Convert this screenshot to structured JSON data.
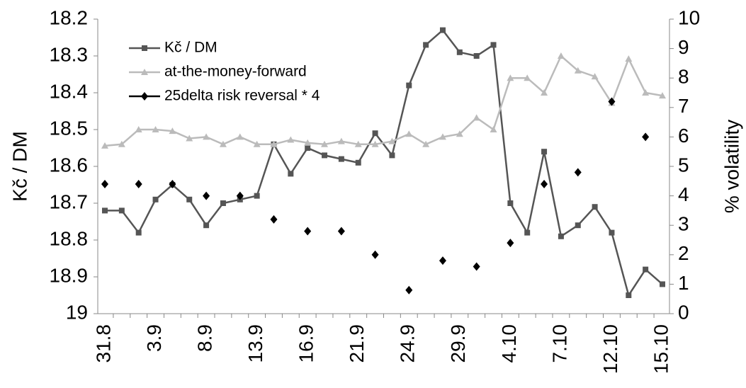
{
  "chart_data": {
    "type": "line",
    "categories": [
      "31.8",
      null,
      null,
      "3.9",
      null,
      null,
      "8.9",
      null,
      null,
      "13.9",
      null,
      null,
      "16.9",
      null,
      null,
      "21.9",
      null,
      null,
      "24.9",
      null,
      null,
      "29.9",
      null,
      null,
      "4.10",
      null,
      null,
      "7.10",
      null,
      null,
      "12.10",
      null,
      null,
      "15.10"
    ],
    "ylabel": "Kč / DM",
    "y2label": "% volatility",
    "ylim": [
      19,
      18.2
    ],
    "yticks": [
      18.2,
      18.3,
      18.4,
      18.5,
      18.6,
      18.7,
      18.8,
      18.9,
      19
    ],
    "y2lim": [
      0,
      10
    ],
    "y2ticks": [
      0,
      1,
      2,
      3,
      4,
      5,
      6,
      7,
      8,
      9,
      10
    ],
    "legend": "upper left",
    "series": [
      {
        "name": "Kč / DM",
        "color": "#555555",
        "marker": "square",
        "values": [
          18.72,
          18.72,
          18.78,
          18.69,
          18.65,
          18.69,
          18.76,
          18.7,
          18.69,
          18.68,
          18.54,
          18.62,
          18.55,
          18.57,
          18.58,
          18.59,
          18.51,
          18.57,
          18.38,
          18.27,
          18.23,
          18.29,
          18.3,
          18.27,
          18.7,
          18.78,
          18.56,
          18.79,
          18.76,
          18.71,
          18.78,
          18.95,
          18.88,
          18.92
        ]
      },
      {
        "name": "at-the-money-forward",
        "color": "#bbbbbb",
        "marker": "triangle",
        "axis": "y2",
        "values": [
          5.7,
          5.75,
          6.25,
          6.25,
          6.2,
          5.95,
          6.0,
          5.75,
          6.0,
          5.75,
          5.75,
          5.9,
          5.8,
          5.75,
          5.85,
          5.75,
          5.75,
          5.85,
          6.1,
          5.75,
          6.0,
          6.1,
          6.65,
          6.25,
          8.0,
          8.0,
          7.5,
          8.75,
          8.25,
          8.05,
          7.15,
          8.65,
          7.5,
          7.4
        ]
      },
      {
        "name": "25delta risk reversal * 4",
        "color": "#000000",
        "marker": "diamond",
        "axis": "y2",
        "line": false,
        "values": [
          4.4,
          null,
          4.4,
          null,
          4.4,
          null,
          4.0,
          null,
          4.0,
          null,
          3.2,
          null,
          2.8,
          null,
          2.8,
          null,
          2.0,
          null,
          0.8,
          null,
          1.8,
          null,
          1.6,
          null,
          2.4,
          null,
          4.4,
          null,
          4.8,
          null,
          7.2,
          null,
          6.0,
          null
        ]
      }
    ]
  }
}
